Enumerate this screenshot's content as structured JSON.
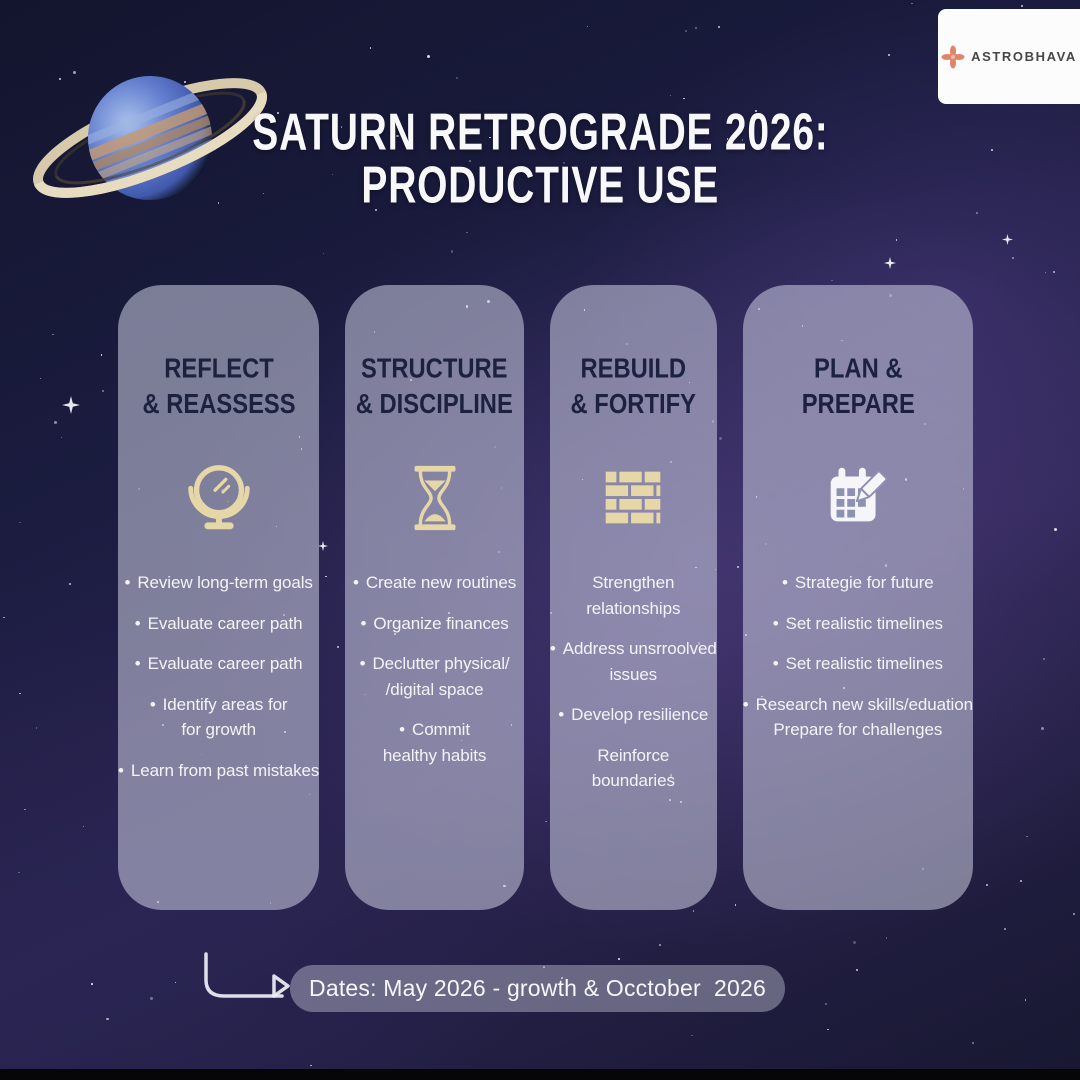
{
  "logo": {
    "text": "ASTROBHAVA",
    "icon": "flower-icon"
  },
  "title": {
    "line1": "SATURN RETROGRADE 2026:",
    "line2": "PRODUCTIVE USE"
  },
  "cards": [
    {
      "id": "reflect-reassess",
      "title_lines": [
        "REFLECT",
        "& REASSESS"
      ],
      "icon": "mirror-icon",
      "items": [
        {
          "bullet": true,
          "lines": [
            "Review long-term goals"
          ]
        },
        {
          "bullet": true,
          "lines": [
            "Evaluate career path"
          ]
        },
        {
          "bullet": true,
          "lines": [
            "Evaluate career path"
          ]
        },
        {
          "bullet": true,
          "lines": [
            "Identify areas for",
            "for growth"
          ]
        },
        {
          "bullet": true,
          "lines": [
            "Learn from past mistakes"
          ]
        }
      ]
    },
    {
      "id": "structure-discipline",
      "title_lines": [
        "STRUCTURE",
        "& DISCIPLINE"
      ],
      "icon": "hourglass-icon",
      "items": [
        {
          "bullet": true,
          "lines": [
            "Create new routines"
          ]
        },
        {
          "bullet": true,
          "lines": [
            "Organize finances"
          ]
        },
        {
          "bullet": true,
          "lines": [
            "Declutter physical/",
            "/digital space"
          ]
        },
        {
          "bullet": true,
          "lines": [
            "Commit",
            "healthy habits"
          ]
        }
      ]
    },
    {
      "id": "rebuild-fortify",
      "title_lines": [
        "REBUILD",
        "& FORTIFY"
      ],
      "icon": "brick-wall-icon",
      "items": [
        {
          "bullet": false,
          "lines": [
            "Strengthen",
            "relationships"
          ]
        },
        {
          "bullet": true,
          "lines": [
            "Address unsrroolved",
            "issues"
          ]
        },
        {
          "bullet": true,
          "lines": [
            "Develop resilience"
          ]
        },
        {
          "bullet": false,
          "lines": [
            "Reinforce",
            "boundaries"
          ]
        }
      ]
    },
    {
      "id": "plan-prepare",
      "title_lines": [
        "PLAN &",
        "PREPARE"
      ],
      "icon": "calendar-pencil-icon",
      "items": [
        {
          "bullet": true,
          "lines": [
            "Strategie for future"
          ]
        },
        {
          "bullet": true,
          "lines": [
            "Set realistic timelines"
          ]
        },
        {
          "bullet": true,
          "lines": [
            "Set realistic timelines"
          ]
        },
        {
          "bullet": true,
          "lines": [
            "Research new skills/eduation",
            "Prepare for challenges"
          ]
        }
      ]
    }
  ],
  "footer": {
    "dates_label": "Dates: May 2026 - growth & Occtober  2026"
  },
  "colors": {
    "accent_cream": "#e6d7a8",
    "icon_white": "#f6f6fa",
    "logo_coral": "#e0846b",
    "card_bg": "rgba(205,208,228,0.55)",
    "header_ink": "#1d2140",
    "body_text": "#f3f3f7"
  }
}
